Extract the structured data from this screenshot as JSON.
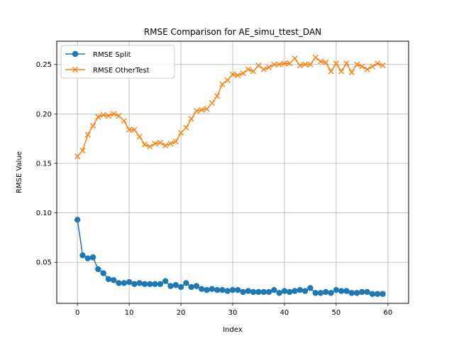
{
  "chart_data": {
    "type": "line",
    "title": "RMSE Comparison for AE_simu_ttest_DAN",
    "xlabel": "Index",
    "ylabel": "RMSE Value",
    "xlim": [
      -4,
      64
    ],
    "ylim": [
      0.0085,
      0.2735
    ],
    "xticks": [
      0,
      10,
      20,
      30,
      40,
      50,
      60
    ],
    "yticks": [
      0.05,
      0.1,
      0.15,
      0.2,
      0.25
    ],
    "ytick_labels": [
      "0.05",
      "0.10",
      "0.15",
      "0.20",
      "0.25"
    ],
    "grid": true,
    "legend": "upper-left",
    "x": [
      0,
      1,
      2,
      3,
      4,
      5,
      6,
      7,
      8,
      9,
      10,
      11,
      12,
      13,
      14,
      15,
      16,
      17,
      18,
      19,
      20,
      21,
      22,
      23,
      24,
      25,
      26,
      27,
      28,
      29,
      30,
      31,
      32,
      33,
      34,
      35,
      36,
      37,
      38,
      39,
      40,
      41,
      42,
      43,
      44,
      45,
      46,
      47,
      48,
      49,
      50,
      51,
      52,
      53,
      54,
      55,
      56,
      57,
      58,
      59
    ],
    "series": [
      {
        "name": "RMSE Split",
        "color": "#1f77b4",
        "marker": "circle",
        "values": [
          0.093,
          0.057,
          0.054,
          0.055,
          0.043,
          0.039,
          0.033,
          0.032,
          0.029,
          0.029,
          0.03,
          0.028,
          0.029,
          0.028,
          0.028,
          0.028,
          0.028,
          0.031,
          0.026,
          0.027,
          0.025,
          0.029,
          0.025,
          0.026,
          0.023,
          0.022,
          0.023,
          0.022,
          0.022,
          0.021,
          0.022,
          0.022,
          0.02,
          0.021,
          0.02,
          0.02,
          0.02,
          0.02,
          0.022,
          0.019,
          0.021,
          0.02,
          0.021,
          0.022,
          0.021,
          0.024,
          0.019,
          0.019,
          0.02,
          0.019,
          0.022,
          0.021,
          0.021,
          0.019,
          0.019,
          0.02,
          0.02,
          0.018,
          0.018,
          0.018
        ]
      },
      {
        "name": "RMSE OtherTest",
        "color": "#ff7f0e",
        "marker": "x",
        "values": [
          0.157,
          0.163,
          0.179,
          0.188,
          0.197,
          0.199,
          0.198,
          0.2,
          0.198,
          0.193,
          0.184,
          0.184,
          0.177,
          0.169,
          0.167,
          0.17,
          0.171,
          0.168,
          0.17,
          0.172,
          0.181,
          0.186,
          0.195,
          0.203,
          0.204,
          0.205,
          0.211,
          0.218,
          0.23,
          0.234,
          0.24,
          0.239,
          0.241,
          0.245,
          0.243,
          0.249,
          0.245,
          0.247,
          0.25,
          0.25,
          0.251,
          0.251,
          0.256,
          0.249,
          0.25,
          0.25,
          0.257,
          0.253,
          0.252,
          0.243,
          0.251,
          0.243,
          0.251,
          0.242,
          0.25,
          0.248,
          0.245,
          0.248,
          0.251,
          0.249
        ]
      }
    ]
  }
}
